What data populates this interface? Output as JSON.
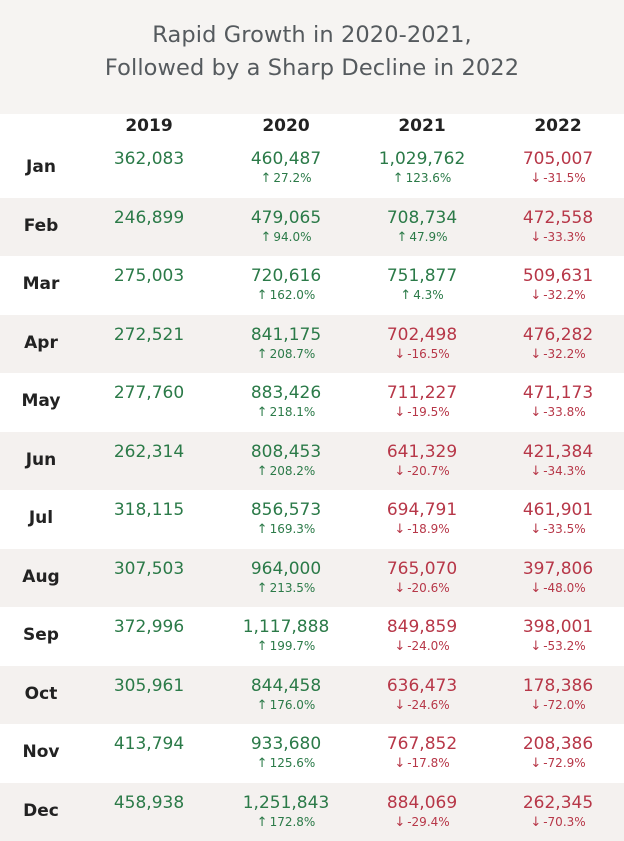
{
  "title": {
    "line1": "Rapid Growth in 2020-2021,",
    "line2": "Followed by a Sharp Decline in 2022"
  },
  "colors": {
    "positive": "#2b7a48",
    "negative": "#b73748",
    "band": "#f4f1ef"
  },
  "chart_data": {
    "type": "table",
    "title": "Rapid Growth in 2020-2021, Followed by a Sharp Decline in 2022",
    "columns": [
      "2019",
      "2020",
      "2021",
      "2022"
    ],
    "rows": [
      {
        "month": "Jan",
        "cells": [
          {
            "value": "362,083"
          },
          {
            "value": "460,487",
            "change": "27.2%"
          },
          {
            "value": "1,029,762",
            "change": "123.6%"
          },
          {
            "value": "705,007",
            "change": "-31.5%"
          }
        ]
      },
      {
        "month": "Feb",
        "cells": [
          {
            "value": "246,899"
          },
          {
            "value": "479,065",
            "change": "94.0%"
          },
          {
            "value": "708,734",
            "change": "47.9%"
          },
          {
            "value": "472,558",
            "change": "-33.3%"
          }
        ]
      },
      {
        "month": "Mar",
        "cells": [
          {
            "value": "275,003"
          },
          {
            "value": "720,616",
            "change": "162.0%"
          },
          {
            "value": "751,877",
            "change": "4.3%"
          },
          {
            "value": "509,631",
            "change": "-32.2%"
          }
        ]
      },
      {
        "month": "Apr",
        "cells": [
          {
            "value": "272,521"
          },
          {
            "value": "841,175",
            "change": "208.7%"
          },
          {
            "value": "702,498",
            "change": "-16.5%"
          },
          {
            "value": "476,282",
            "change": "-32.2%"
          }
        ]
      },
      {
        "month": "May",
        "cells": [
          {
            "value": "277,760"
          },
          {
            "value": "883,426",
            "change": "218.1%"
          },
          {
            "value": "711,227",
            "change": "-19.5%"
          },
          {
            "value": "471,173",
            "change": "-33.8%"
          }
        ]
      },
      {
        "month": "Jun",
        "cells": [
          {
            "value": "262,314"
          },
          {
            "value": "808,453",
            "change": "208.2%"
          },
          {
            "value": "641,329",
            "change": "-20.7%"
          },
          {
            "value": "421,384",
            "change": "-34.3%"
          }
        ]
      },
      {
        "month": "Jul",
        "cells": [
          {
            "value": "318,115"
          },
          {
            "value": "856,573",
            "change": "169.3%"
          },
          {
            "value": "694,791",
            "change": "-18.9%"
          },
          {
            "value": "461,901",
            "change": "-33.5%"
          }
        ]
      },
      {
        "month": "Aug",
        "cells": [
          {
            "value": "307,503"
          },
          {
            "value": "964,000",
            "change": "213.5%"
          },
          {
            "value": "765,070",
            "change": "-20.6%"
          },
          {
            "value": "397,806",
            "change": "-48.0%"
          }
        ]
      },
      {
        "month": "Sep",
        "cells": [
          {
            "value": "372,996"
          },
          {
            "value": "1,117,888",
            "change": "199.7%"
          },
          {
            "value": "849,859",
            "change": "-24.0%"
          },
          {
            "value": "398,001",
            "change": "-53.2%"
          }
        ]
      },
      {
        "month": "Oct",
        "cells": [
          {
            "value": "305,961"
          },
          {
            "value": "844,458",
            "change": "176.0%"
          },
          {
            "value": "636,473",
            "change": "-24.6%"
          },
          {
            "value": "178,386",
            "change": "-72.0%"
          }
        ]
      },
      {
        "month": "Nov",
        "cells": [
          {
            "value": "413,794"
          },
          {
            "value": "933,680",
            "change": "125.6%"
          },
          {
            "value": "767,852",
            "change": "-17.8%"
          },
          {
            "value": "208,386",
            "change": "-72.9%"
          }
        ]
      },
      {
        "month": "Dec",
        "cells": [
          {
            "value": "458,938"
          },
          {
            "value": "1,251,843",
            "change": "172.8%"
          },
          {
            "value": "884,069",
            "change": "-29.4%"
          },
          {
            "value": "262,345",
            "change": "-70.3%"
          }
        ]
      }
    ]
  }
}
